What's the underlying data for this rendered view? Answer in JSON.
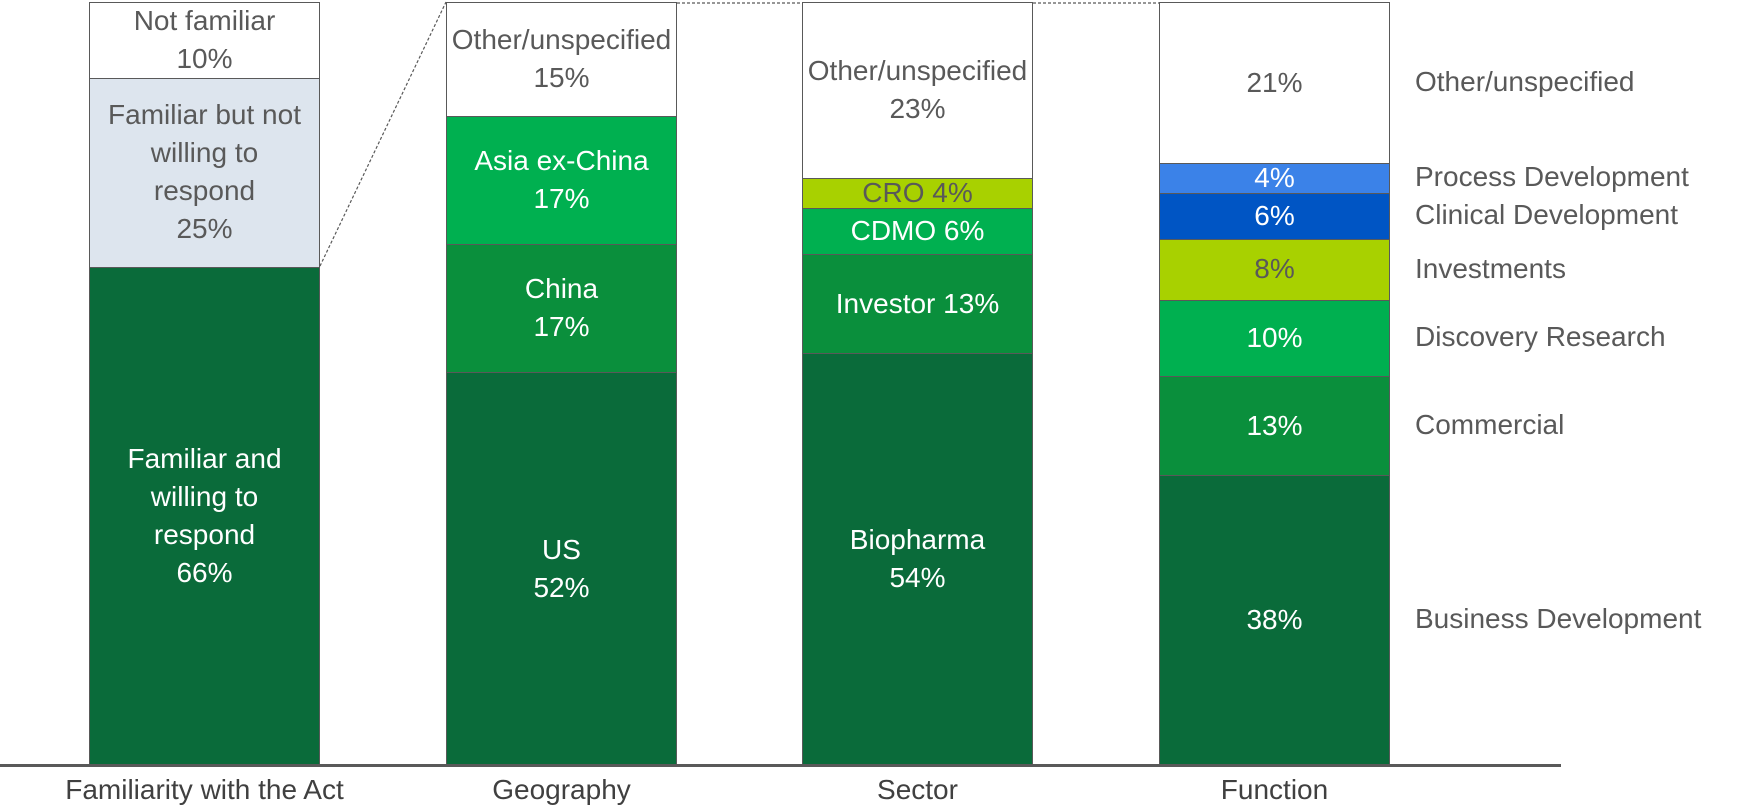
{
  "chart_data": {
    "type": "stacked_column_100",
    "categories": [
      "Familiarity with the Act",
      "Geography",
      "Sector",
      "Function"
    ],
    "stacks": [
      {
        "names": [
          "Familiar and willing to respond",
          "Familiar but not willing to respond",
          "Not familiar"
        ],
        "values": [
          66,
          25,
          10
        ],
        "value_labels": [
          "66%",
          "25%",
          "10%"
        ],
        "colors": [
          "#0a6b3a",
          "#dde5ee",
          "#ffffff"
        ],
        "name_position": "inside"
      },
      {
        "names": [
          "US",
          "China",
          "Asia ex-China",
          "Other/unspecified"
        ],
        "values": [
          52,
          17,
          17,
          15
        ],
        "value_labels": [
          "52%",
          "17%",
          "17%",
          "15%"
        ],
        "colors": [
          "#0a6b3a",
          "#0a8f3c",
          "#00b050",
          "#ffffff"
        ],
        "name_position": "inside"
      },
      {
        "names": [
          "Biopharma",
          "Investor",
          "CDMO",
          "CRO",
          "Other/unspecified"
        ],
        "values": [
          54,
          13,
          6,
          4,
          23
        ],
        "value_labels": [
          "54%",
          "13%",
          "6%",
          "4%",
          "23%"
        ],
        "colors": [
          "#0a6b3a",
          "#0a8f3c",
          "#00b050",
          "#a8d100",
          "#ffffff"
        ],
        "name_position": "inside"
      },
      {
        "names": [
          "Business Development",
          "Commercial",
          "Discovery Research",
          "Investments",
          "Clinical Development",
          "Process Development",
          "Other/unspecified"
        ],
        "values": [
          38,
          13,
          10,
          8,
          6,
          4,
          21
        ],
        "value_labels": [
          "38%",
          "13%",
          "10%",
          "8%",
          "6%",
          "4%",
          "21%"
        ],
        "colors": [
          "#0a6b3a",
          "#0a8f3c",
          "#00b050",
          "#a8d100",
          "#0055c4",
          "#3b82e8",
          "#ffffff"
        ],
        "name_position": "right"
      }
    ]
  }
}
